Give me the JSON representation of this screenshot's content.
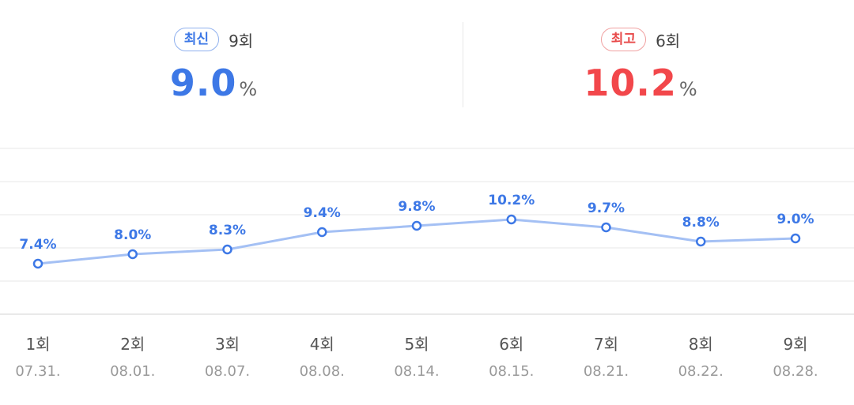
{
  "summary": {
    "latest": {
      "badge": "최신",
      "episode": "9회",
      "value": "9.0",
      "unit": "%",
      "color": "#3d78e6"
    },
    "highest": {
      "badge": "최고",
      "episode": "6회",
      "value": "10.2",
      "unit": "%",
      "color": "#f2474b"
    }
  },
  "chart_data": {
    "type": "line",
    "categories": [
      "1회",
      "2회",
      "3회",
      "4회",
      "5회",
      "6회",
      "7회",
      "8회",
      "9회"
    ],
    "dates": [
      "07.31.",
      "08.01.",
      "08.07.",
      "08.08.",
      "08.14.",
      "08.15.",
      "08.21.",
      "08.22.",
      "08.28."
    ],
    "values": [
      7.4,
      8.0,
      8.3,
      9.4,
      9.8,
      10.2,
      9.7,
      8.8,
      9.0
    ],
    "labels": [
      "7.4%",
      "8.0%",
      "8.3%",
      "9.4%",
      "9.8%",
      "10.2%",
      "9.7%",
      "8.8%",
      "9.0%"
    ],
    "title": "",
    "xlabel": "",
    "ylabel": "",
    "grid": true,
    "colors": {
      "line": "#a4c0f4",
      "marker": "#3d78e6",
      "label": "#3d78e6"
    }
  }
}
